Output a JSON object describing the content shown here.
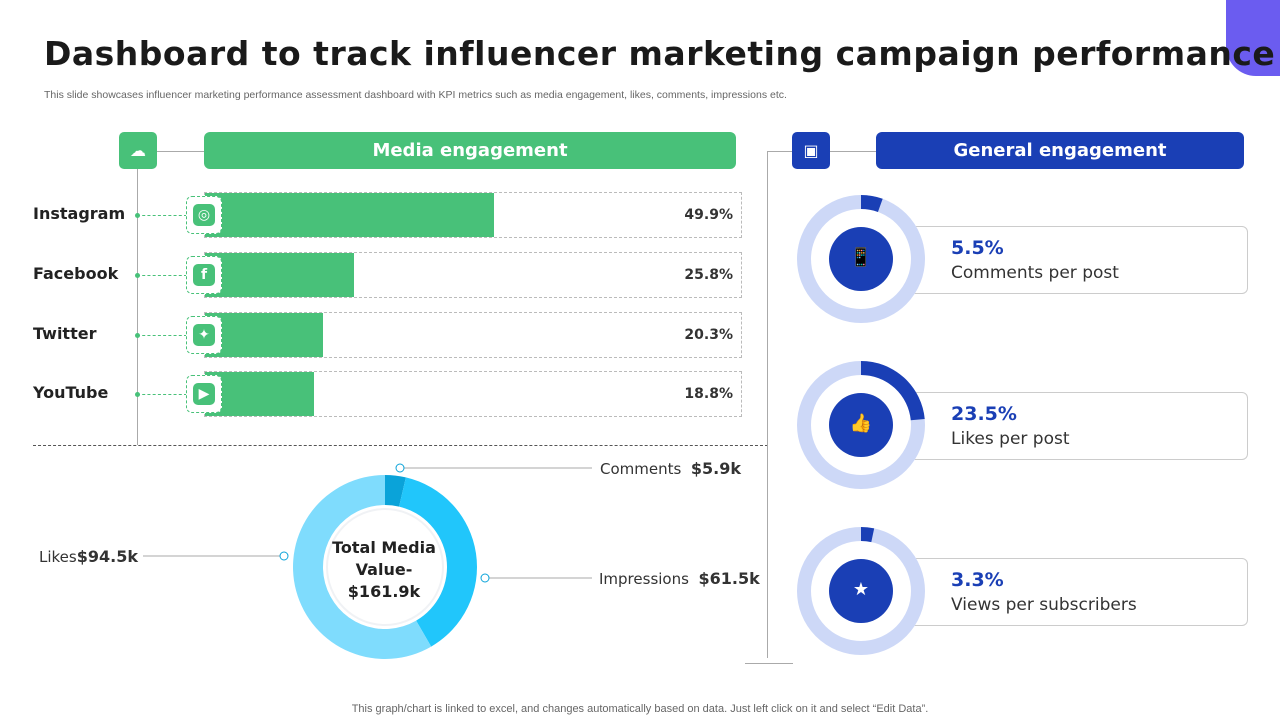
{
  "title": "Dashboard to track influencer marketing campaign performance",
  "subtitle": "This slide showcases influencer marketing performance assessment dashboard with KPI metrics such as media engagement, likes, comments, impressions etc.",
  "footer": "This graph/chart is linked to excel,  and changes automatically based on data. Just left click on it and select “Edit Data”.",
  "colors": {
    "green": "#48c179",
    "blue": "#1a3fb5",
    "ring_light": "#cdd8f7",
    "donut": [
      "#0aa3d9",
      "#21c6fb",
      "#7fdcfd"
    ]
  },
  "media": {
    "header": "Media engagement",
    "icon": "network-cloud-icon"
  },
  "general": {
    "header": "General engagement",
    "icon": "money-icon"
  },
  "chart_data": [
    {
      "type": "bar",
      "orientation": "horizontal",
      "categories": [
        "Instagram",
        "Facebook",
        "Twitter",
        "YouTube"
      ],
      "values": [
        49.9,
        25.8,
        20.3,
        18.8
      ],
      "labels": [
        "49.9%",
        "25.8%",
        "20.3%",
        "18.8%"
      ],
      "icons": [
        "instagram-icon",
        "facebook-icon",
        "twitter-icon",
        "youtube-icon"
      ],
      "xlim": [
        0,
        100
      ]
    },
    {
      "type": "pie",
      "center_label": [
        "Total Media",
        "Value-",
        "$161.9k"
      ],
      "slices": [
        {
          "name": "Comments",
          "value": 5.9,
          "label": "$5.9k"
        },
        {
          "name": "Impressions",
          "value": 61.5,
          "label": "$61.5k"
        },
        {
          "name": "Likes",
          "value": 94.5,
          "label": "$94.5k"
        }
      ]
    },
    {
      "type": "pie",
      "items": [
        {
          "value": 5.5,
          "label": "5.5%",
          "name": "Comments per post",
          "icon": "mobile-chat-icon"
        },
        {
          "value": 23.5,
          "label": "23.5%",
          "name": "Likes per post",
          "icon": "mobile-like-icon"
        },
        {
          "value": 3.3,
          "label": "3.3%",
          "name": "Views per subscribers",
          "icon": "audience-screen-icon"
        }
      ]
    }
  ]
}
